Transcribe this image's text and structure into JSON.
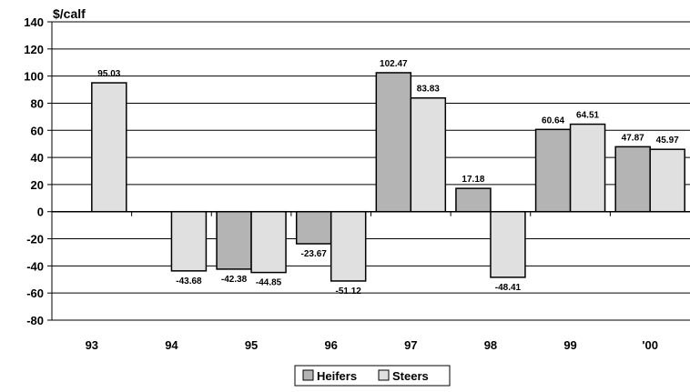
{
  "chart_data": {
    "type": "bar",
    "unit_label": "$/calf",
    "categories": [
      "93",
      "94",
      "95",
      "96",
      "97",
      "98",
      "99",
      "'00"
    ],
    "series": [
      {
        "name": "Heifers",
        "color": "#b4b4b4",
        "values": [
          null,
          null,
          -42.38,
          -23.67,
          102.47,
          17.18,
          60.64,
          47.87
        ]
      },
      {
        "name": "Steers",
        "color": "#e0e0e0",
        "values": [
          95.03,
          -43.68,
          -44.85,
          -51.12,
          83.83,
          -48.41,
          64.51,
          45.97
        ]
      }
    ],
    "data_labels": [
      [
        null,
        null,
        "-42.38",
        "-23.67",
        "102.47",
        "17.18",
        "60.64",
        "47.87"
      ],
      [
        "95.03",
        "-43.68",
        "-44.85",
        "-51.12",
        "83.83",
        "-48.41",
        "64.51",
        "45.97"
      ]
    ],
    "yticks": [
      "140",
      "120",
      "100",
      "80",
      "60",
      "40",
      "20",
      "0",
      "-20",
      "-40",
      "-60",
      "-80"
    ],
    "ylim": [
      -80,
      140
    ],
    "grid": true,
    "legend_position": "bottom-center",
    "bar_border_color": "#000000"
  }
}
